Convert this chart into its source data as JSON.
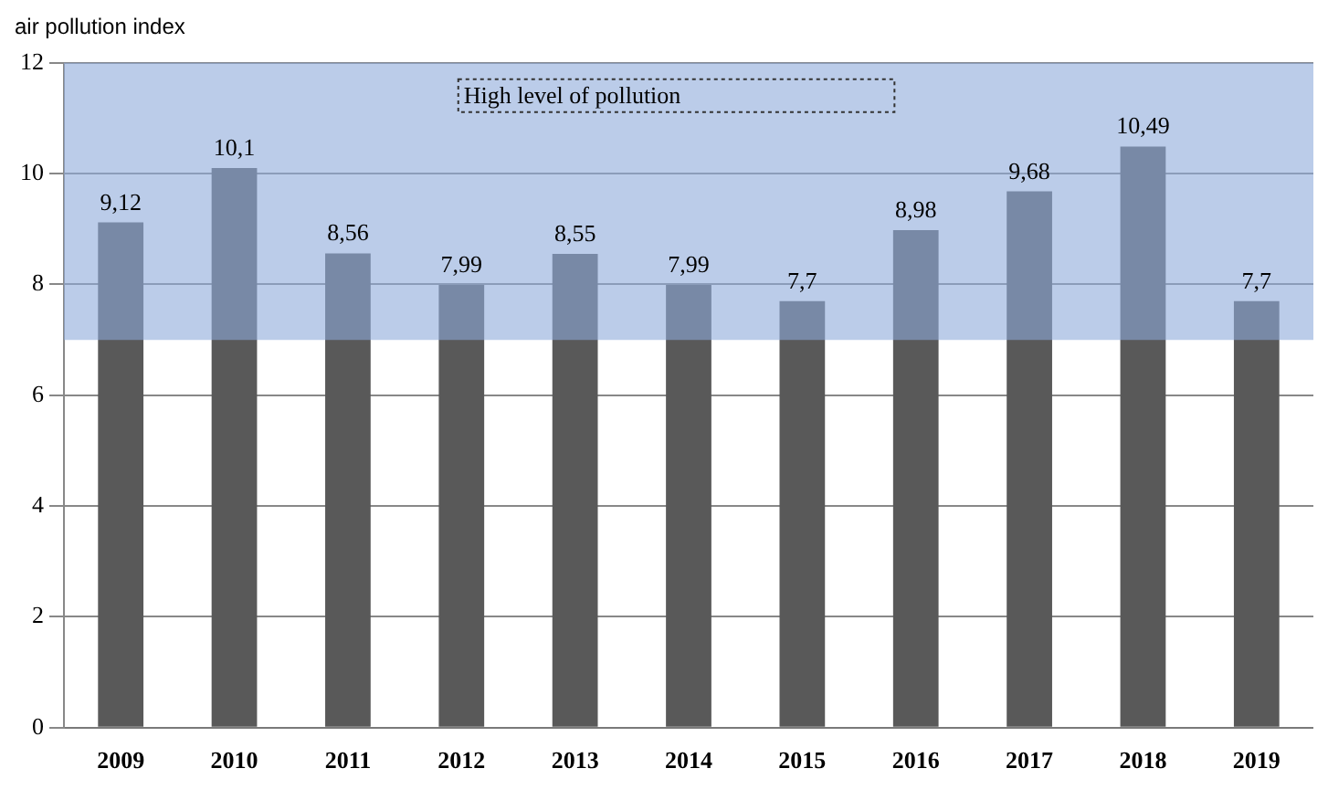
{
  "chart_data": {
    "type": "bar",
    "title": "air pollution index",
    "categories": [
      "2009",
      "2010",
      "2011",
      "2012",
      "2013",
      "2014",
      "2015",
      "2016",
      "2017",
      "2018",
      "2019"
    ],
    "values": [
      9.12,
      10.1,
      8.56,
      7.99,
      8.55,
      7.99,
      7.7,
      8.98,
      9.68,
      10.49,
      7.7
    ],
    "value_labels": [
      "9,12",
      "10,1",
      "8,56",
      "7,99",
      "8,55",
      "7,99",
      "7,7",
      "8,98",
      "9,68",
      "10,49",
      "7,7"
    ],
    "color": "#595959",
    "ylim": [
      0,
      12
    ],
    "yticks": [
      0,
      2,
      4,
      6,
      8,
      10,
      12
    ],
    "grid": "y",
    "legend": false,
    "bands": [
      {
        "axis": "y",
        "from": 7,
        "to": 12,
        "label": "High level of pollution",
        "color": "#8eaadb"
      }
    ]
  }
}
